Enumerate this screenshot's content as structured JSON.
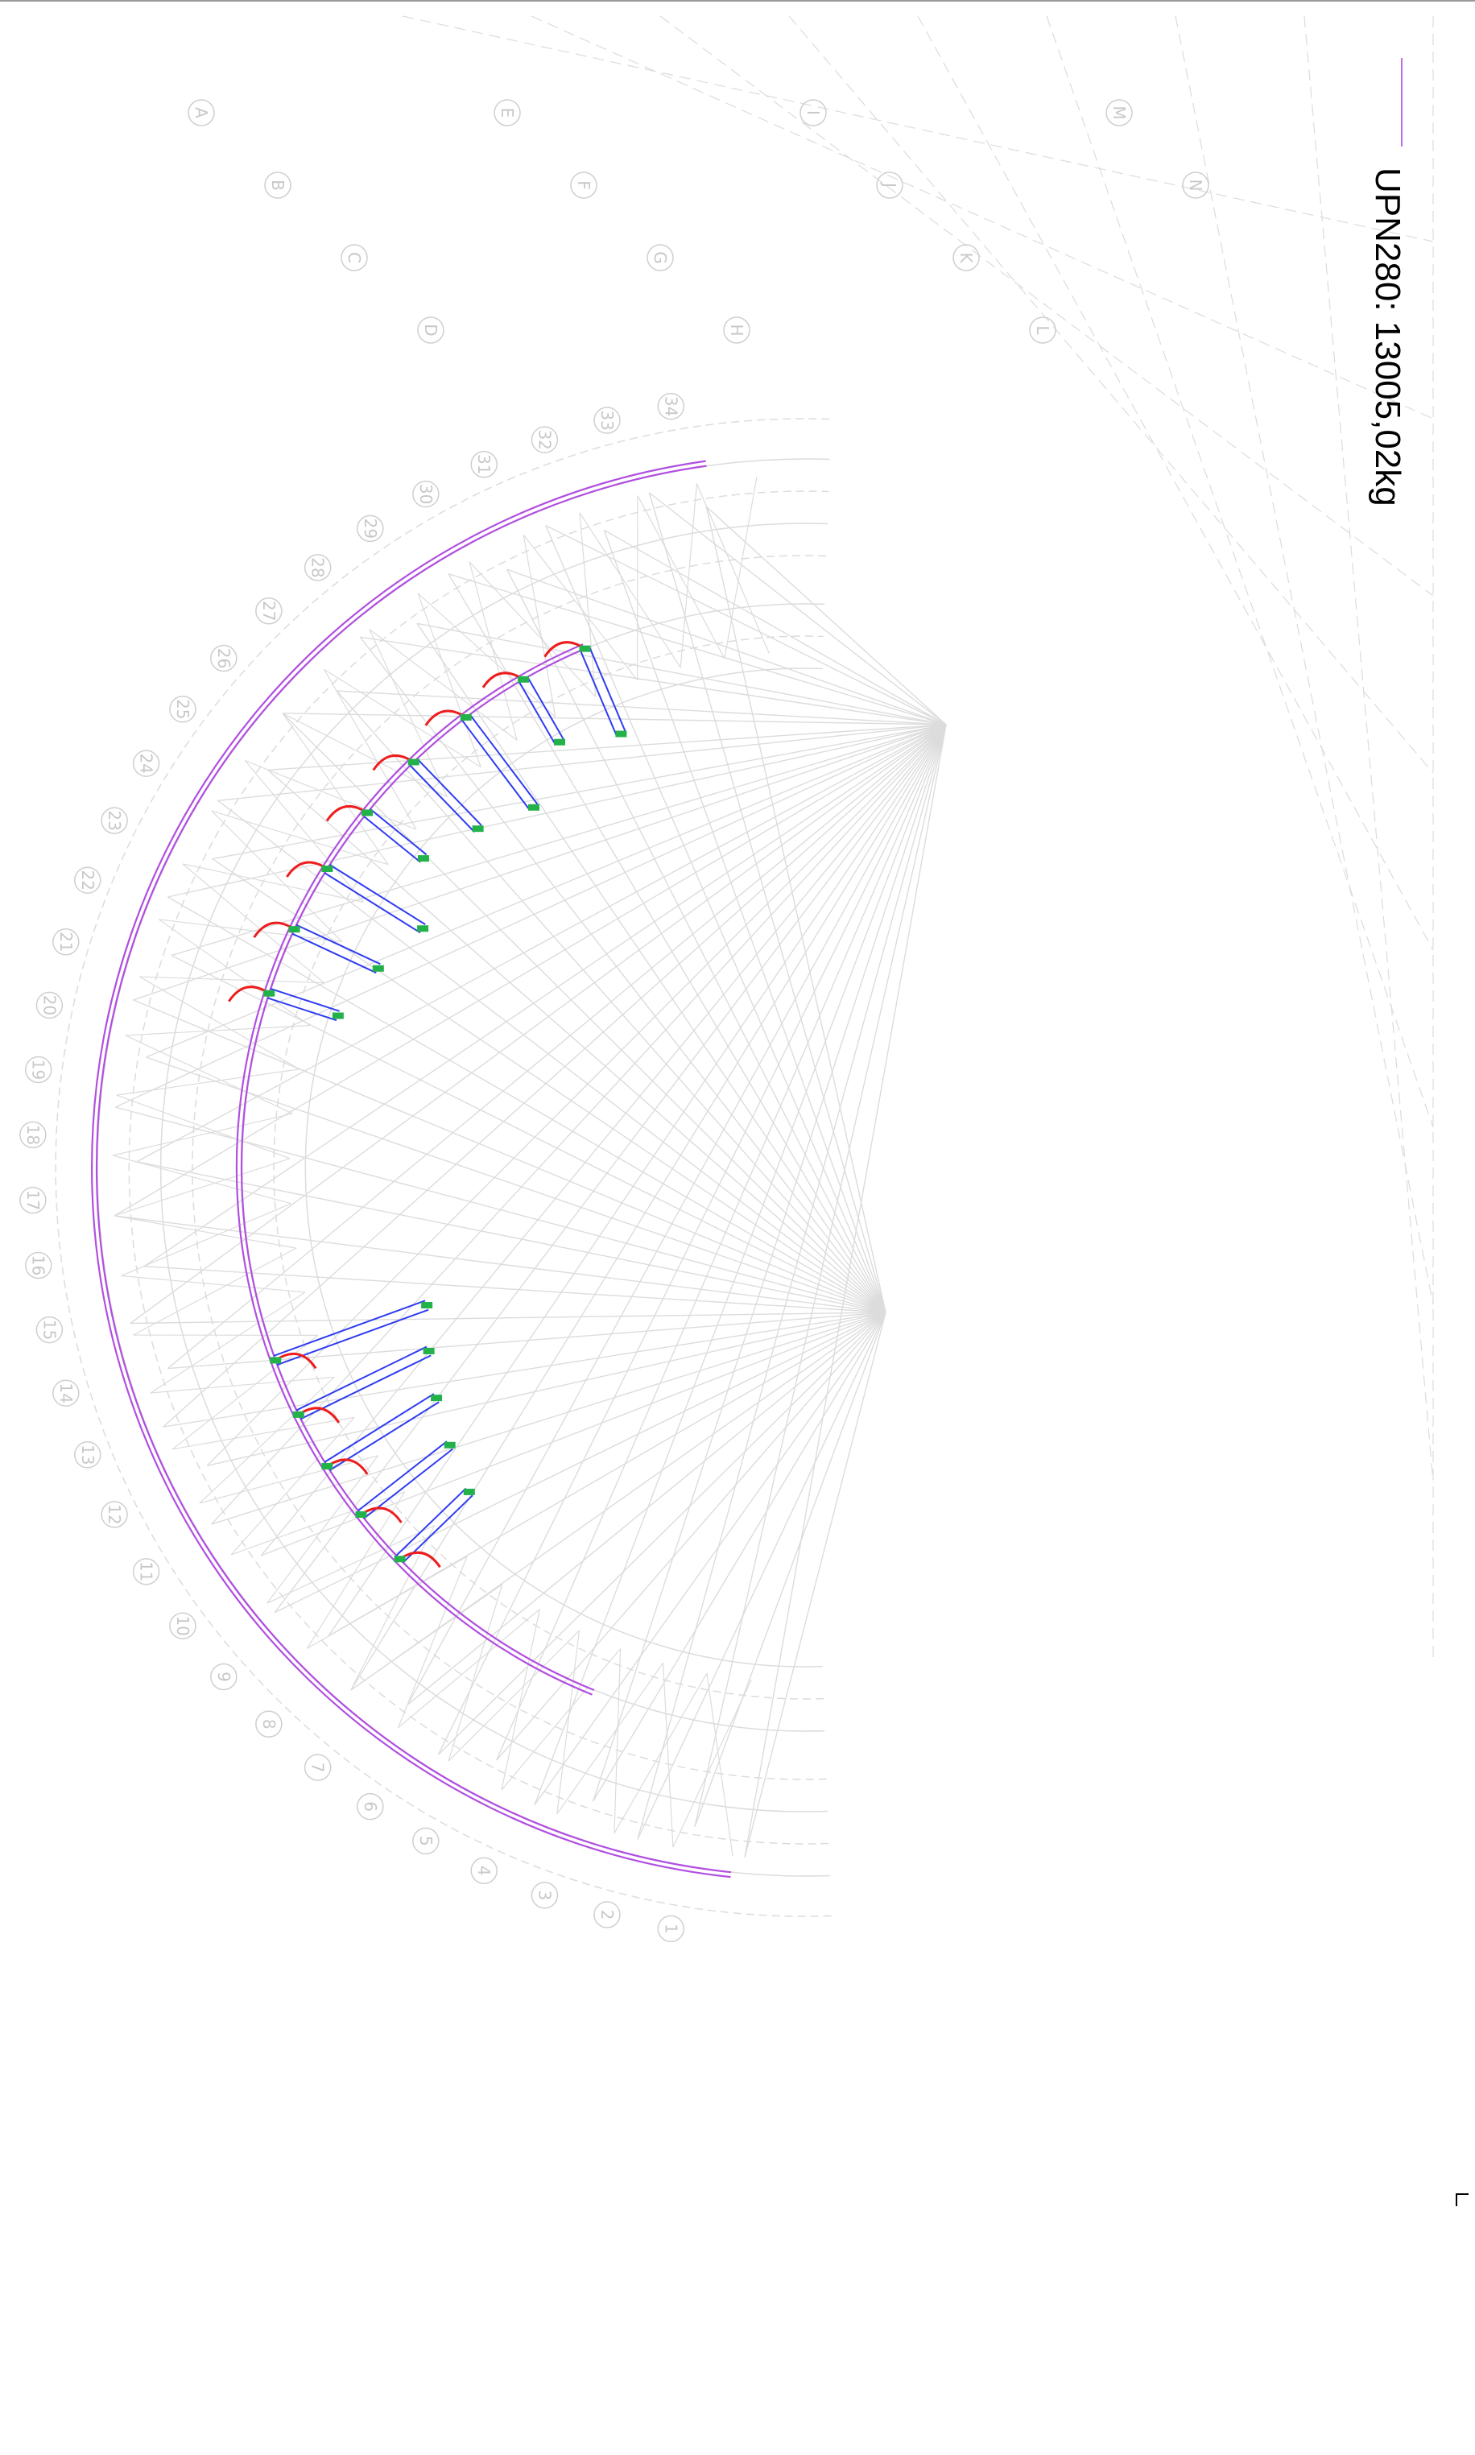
{
  "legend": {
    "label": "UPN280: 13005,02kg",
    "color": "#c36be8"
  },
  "header_partial": "...",
  "footer": {
    "code_a": "...",
    "code_b": "..."
  },
  "colors": {
    "background": "#ffffff",
    "grid": "#dcdcdc",
    "purple_profile": "#b14fe0",
    "blue_member": "#2f3cf0",
    "red_member": "#ee1c1c",
    "green_node": "#23b24a"
  },
  "grid_labels_outer": [
    "1",
    "2",
    "3",
    "4",
    "5",
    "6",
    "7",
    "8",
    "9",
    "10",
    "11",
    "12",
    "13",
    "14",
    "15",
    "16",
    "17",
    "18",
    "19",
    "20",
    "21",
    "22",
    "23",
    "24",
    "25",
    "26",
    "27",
    "28",
    "29",
    "30",
    "31",
    "32",
    "33",
    "34"
  ],
  "grid_labels_letters": [
    "A",
    "B",
    "C",
    "D",
    "E",
    "F",
    "G",
    "H",
    "I",
    "J",
    "K",
    "L",
    "M",
    "N"
  ]
}
